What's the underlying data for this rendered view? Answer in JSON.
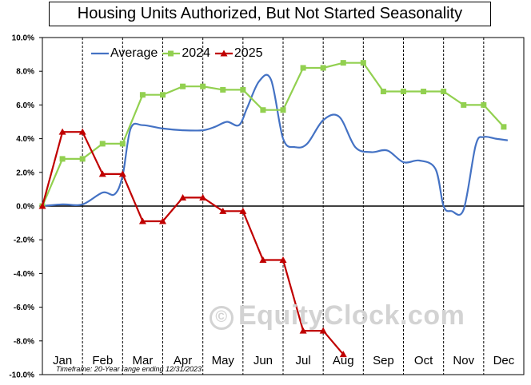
{
  "chart_data": {
    "type": "line",
    "title": "Housing Units Authorized, But Not Started  Seasonality",
    "footnote": "Timeframe: 20-Year range ending 12/31/2023",
    "watermark": "EquityClock.com",
    "x_ticks": [
      "Jan",
      "Feb",
      "Mar",
      "Apr",
      "May",
      "Jun",
      "Jul",
      "Aug",
      "Sep",
      "Oct",
      "Nov",
      "Dec"
    ],
    "y_ticks": [
      "10.0%",
      "8.0%",
      "6.0%",
      "4.0%",
      "2.0%",
      "0.0%",
      "-2.0%",
      "-4.0%",
      "-6.0%",
      "-8.0%",
      "-10.0%"
    ],
    "ylim": [
      -10,
      10
    ],
    "legend_position": "top-left",
    "series": [
      {
        "name": "Average",
        "color": "#4472c4",
        "marker": "none",
        "x": [
          1,
          1.5,
          2,
          2.5,
          2.8,
          3,
          3.2,
          3.5,
          4,
          4.5,
          5,
          5.3,
          5.6,
          5.9,
          6.1,
          6.4,
          6.7,
          7,
          7.3,
          7.6,
          8,
          8.4,
          8.8,
          9.2,
          9.6,
          10,
          10.4,
          10.8,
          11,
          11.2,
          11.5,
          11.8,
          12,
          12.3,
          12.6
        ],
        "values": [
          0.0,
          0.1,
          0.1,
          0.8,
          0.7,
          1.8,
          4.6,
          4.8,
          4.6,
          4.5,
          4.5,
          4.7,
          5.0,
          4.8,
          5.8,
          7.4,
          7.5,
          4.0,
          3.5,
          3.7,
          5.1,
          5.3,
          3.5,
          3.2,
          3.3,
          2.6,
          2.7,
          2.2,
          0.0,
          -0.3,
          -0.2,
          3.6,
          4.1,
          4.0,
          3.9
        ]
      },
      {
        "name": "2024",
        "color": "#92d050",
        "marker": "square",
        "x": [
          1,
          1.5,
          2,
          2.5,
          3,
          3.5,
          4,
          4.5,
          5,
          5.5,
          6,
          6.5,
          7,
          7.5,
          8,
          8.5,
          9,
          9.5,
          10,
          10.5,
          11,
          11.5,
          12,
          12.5
        ],
        "values": [
          0.0,
          2.8,
          2.8,
          3.7,
          3.7,
          6.6,
          6.6,
          7.1,
          7.1,
          6.9,
          6.9,
          5.7,
          5.7,
          8.2,
          8.2,
          8.5,
          8.5,
          6.8,
          6.8,
          6.8,
          6.8,
          6.0,
          6.0,
          4.7
        ]
      },
      {
        "name": "2025",
        "color": "#c00000",
        "marker": "triangle",
        "x": [
          1,
          1.5,
          2,
          2.5,
          3,
          3.5,
          4,
          4.5,
          5,
          5.5,
          6,
          6.5,
          7,
          7.5,
          8,
          8.5
        ],
        "values": [
          0.0,
          4.4,
          4.4,
          1.9,
          1.9,
          -0.9,
          -0.9,
          0.5,
          0.5,
          -0.3,
          -0.3,
          -3.2,
          -3.2,
          -7.4,
          -7.4,
          -8.8
        ]
      }
    ]
  }
}
